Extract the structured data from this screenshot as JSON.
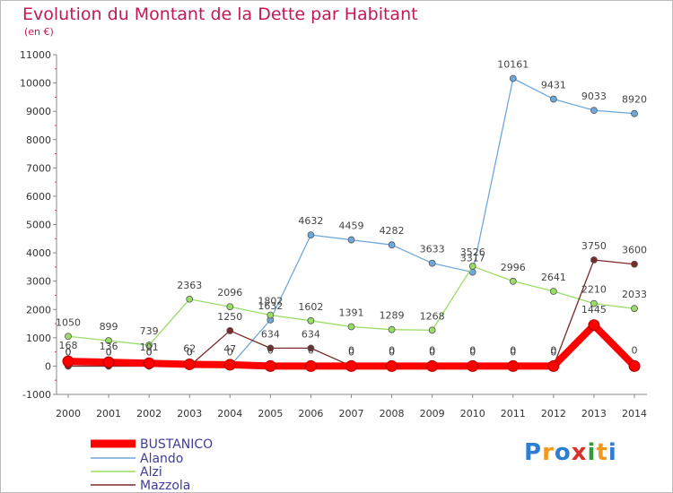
{
  "title": "Evolution du Montant de la Dette par Habitant",
  "unit": "(en €)",
  "chart_data": {
    "type": "line",
    "x": [
      "2000",
      "2001",
      "2002",
      "2003",
      "2004",
      "2005",
      "2006",
      "2007",
      "2008",
      "2009",
      "2010",
      "2011",
      "2012",
      "2013",
      "2014"
    ],
    "ylim": [
      -1000,
      11000
    ],
    "yticks": [
      "-1000",
      "0",
      "1000",
      "2000",
      "3000",
      "4000",
      "5000",
      "6000",
      "7000",
      "8000",
      "9000",
      "10000",
      "11000"
    ],
    "grid": false,
    "legend_position": "bottom-left",
    "series": [
      {
        "name": "BUSTANICO",
        "color": "#ff0000",
        "values": [
          168,
          136,
          101,
          62,
          47,
          0,
          0,
          0,
          0,
          0,
          0,
          0,
          0,
          1445,
          0
        ],
        "labels": [
          "168",
          "136",
          "101",
          "62",
          "47",
          "0",
          "0",
          "0",
          "0",
          "0",
          "0",
          "0",
          "0",
          "1445",
          "0"
        ]
      },
      {
        "name": "Alando",
        "color": "#6fa8dc",
        "values": [
          0,
          0,
          0,
          0,
          0,
          1632,
          4632,
          4459,
          4282,
          3633,
          3317,
          10161,
          9431,
          9033,
          8920
        ],
        "labels": [
          "0",
          "0",
          "0",
          "0",
          "0",
          "1632",
          "4632",
          "4459",
          "4282",
          "3633",
          "3317",
          "10161",
          "9431",
          "9033",
          "8920"
        ]
      },
      {
        "name": "Alzi",
        "color": "#99dd66",
        "values": [
          1050,
          899,
          739,
          2363,
          2096,
          1802,
          1602,
          1391,
          1289,
          1268,
          3526,
          2996,
          2641,
          2210,
          2033
        ],
        "labels": [
          "1050",
          "899",
          "739",
          "2363",
          "2096",
          "1802",
          "1602",
          "1391",
          "1289",
          "1268",
          "3526",
          "2996",
          "2641",
          "2210",
          "2033"
        ]
      },
      {
        "name": "Mazzola",
        "color": "#7a2a2a",
        "values": [
          0,
          0,
          0,
          0,
          1250,
          634,
          634,
          0,
          0,
          0,
          0,
          0,
          0,
          3750,
          3600
        ],
        "labels": [
          "0",
          "0",
          "0",
          "0",
          "1250",
          "634",
          "634",
          "0",
          "0",
          "0",
          "0",
          "0",
          "0",
          "3750",
          "3600"
        ]
      }
    ]
  },
  "logo": {
    "text": "Proxiti"
  }
}
